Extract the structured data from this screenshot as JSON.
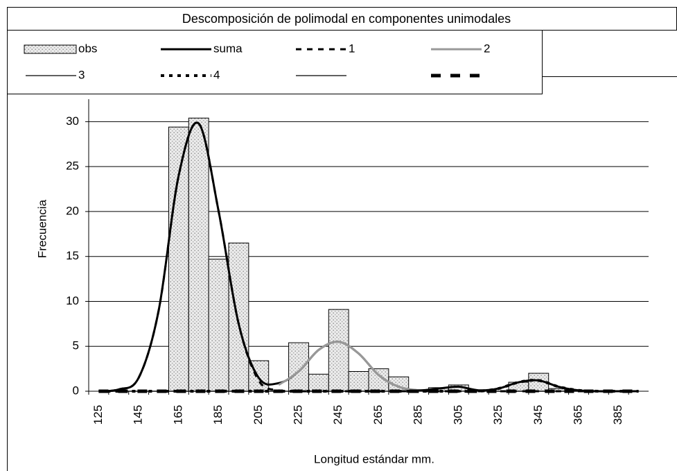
{
  "chart_data": {
    "type": "bar",
    "title": "Descomposición de polimodal en componentes unimodales",
    "x_label": "Longitud estándar mm.",
    "y_label": "Frecuencia",
    "categories": [
      "125",
      null,
      "145",
      null,
      "165",
      null,
      "185",
      null,
      "205",
      null,
      "225",
      null,
      "245",
      null,
      "265",
      null,
      "285",
      null,
      "305",
      null,
      "325",
      null,
      "345",
      null,
      "365",
      null,
      "385",
      null
    ],
    "bars": {
      "name": "obs",
      "values": [
        0,
        0,
        0,
        0,
        29.4,
        30.4,
        14.7,
        16.5,
        3.4,
        0,
        5.4,
        1.9,
        9.1,
        2.2,
        2.5,
        1.6,
        0,
        0.4,
        0.7,
        0,
        0,
        1,
        2,
        0.3,
        0,
        0,
        0,
        0
      ]
    },
    "series": [
      {
        "name": "suma",
        "color": "#000000",
        "style": "thick",
        "values": [
          0,
          0.2,
          1.5,
          9,
          24,
          29.8,
          20,
          7.5,
          1.5,
          0.9,
          2.2,
          4.6,
          5.5,
          4.2,
          1.8,
          0.5,
          0.1,
          0.3,
          0.5,
          0.1,
          0.3,
          1,
          1.2,
          0.5,
          0.1,
          0,
          0,
          0
        ]
      },
      {
        "name": "1",
        "color": "#000000",
        "style": "dashed",
        "values": [
          0,
          0.2,
          1.5,
          9,
          24,
          29.8,
          20,
          7.5,
          1.2,
          0.1,
          0,
          0,
          0,
          0,
          0,
          0,
          0,
          0,
          0,
          0,
          0,
          0,
          0,
          0,
          0,
          0,
          0,
          0
        ]
      },
      {
        "name": "2",
        "color": "#999999",
        "style": "thick",
        "values": [
          null,
          null,
          null,
          null,
          null,
          null,
          null,
          null,
          null,
          0.7,
          2.2,
          4.6,
          5.5,
          4.2,
          1.8,
          0.5,
          0.1,
          null,
          null,
          null,
          null,
          null,
          null,
          null,
          null,
          null,
          null,
          null
        ]
      },
      {
        "name": "3",
        "color": "#000000",
        "style": "thin",
        "values": [
          0,
          0,
          0,
          0,
          0,
          0,
          0,
          0,
          0,
          0,
          0,
          0,
          0,
          0,
          0,
          0,
          0.1,
          0.3,
          0.5,
          0.1,
          0,
          0,
          0,
          0,
          0,
          0,
          0,
          0
        ]
      },
      {
        "name": "4",
        "color": "#000000",
        "style": "dotted",
        "values": [
          0,
          0,
          0,
          0,
          0,
          0,
          0,
          0,
          0,
          0,
          0,
          0,
          0,
          0,
          0,
          0,
          0,
          0,
          0,
          0,
          0.3,
          1,
          1.2,
          0.5,
          0.1,
          0,
          0,
          0
        ]
      },
      {
        "color": "#000000",
        "style": "thin",
        "values": [
          0,
          0,
          0,
          0,
          0,
          0,
          0,
          0,
          0,
          0,
          0,
          0,
          0,
          0,
          0,
          0,
          0,
          0,
          0,
          0,
          0,
          0,
          0,
          0,
          0,
          0,
          0,
          0
        ]
      },
      {
        "color": "#000000",
        "style": "bigdash",
        "values": [
          0,
          0,
          0,
          0,
          0,
          0,
          0,
          0,
          0,
          0,
          0,
          0,
          0,
          0,
          0,
          0,
          0,
          0,
          0,
          0,
          0,
          0,
          0,
          0,
          0,
          0,
          0,
          0
        ]
      }
    ],
    "ylim": [
      0,
      32.5
    ],
    "yticks": [
      0,
      5,
      10,
      15,
      20,
      25,
      30
    ],
    "grid": true
  }
}
